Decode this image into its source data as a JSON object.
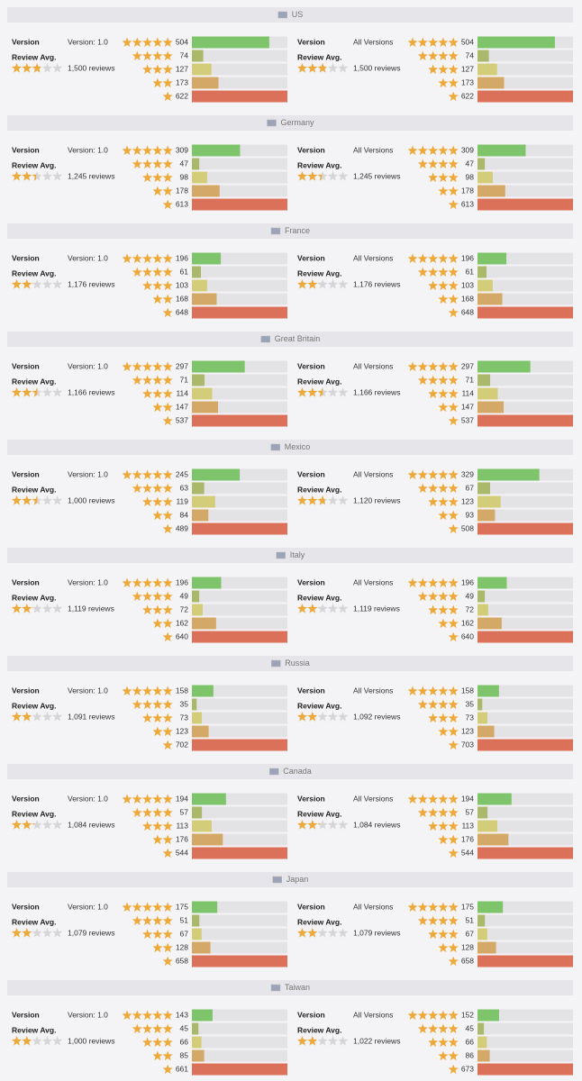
{
  "labels": {
    "version": "Version",
    "review_avg": "Review Avg."
  },
  "bar_colors": [
    "#7dc46a",
    "#a9b86a",
    "#d3cc79",
    "#d4a866",
    "#db7159"
  ],
  "countries": [
    {
      "name": "US",
      "panels": [
        {
          "version": "Version: 1.0",
          "rating": 2.8,
          "reviews": "1,500 reviews",
          "counts": [
            504,
            74,
            127,
            173,
            622
          ]
        },
        {
          "version": "All Versions",
          "rating": 2.8,
          "reviews": "1,500 reviews",
          "counts": [
            504,
            74,
            127,
            173,
            622
          ]
        }
      ]
    },
    {
      "name": "Germany",
      "panels": [
        {
          "version": "Version: 1.0",
          "rating": 2.4,
          "reviews": "1,245 reviews",
          "counts": [
            309,
            47,
            98,
            178,
            613
          ]
        },
        {
          "version": "All Versions",
          "rating": 2.4,
          "reviews": "1,245 reviews",
          "counts": [
            309,
            47,
            98,
            178,
            613
          ]
        }
      ]
    },
    {
      "name": "France",
      "panels": [
        {
          "version": "Version: 1.0",
          "rating": 2.1,
          "reviews": "1,176 reviews",
          "counts": [
            196,
            61,
            103,
            168,
            648
          ]
        },
        {
          "version": "All Versions",
          "rating": 2.1,
          "reviews": "1,176 reviews",
          "counts": [
            196,
            61,
            103,
            168,
            648
          ]
        }
      ]
    },
    {
      "name": "Great Britain",
      "panels": [
        {
          "version": "Version: 1.0",
          "rating": 2.5,
          "reviews": "1,166 reviews",
          "counts": [
            297,
            71,
            114,
            147,
            537
          ]
        },
        {
          "version": "All Versions",
          "rating": 2.5,
          "reviews": "1,166 reviews",
          "counts": [
            297,
            71,
            114,
            147,
            537
          ]
        }
      ]
    },
    {
      "name": "Mexico",
      "panels": [
        {
          "version": "Version: 1.0",
          "rating": 2.5,
          "reviews": "1,000 reviews",
          "counts": [
            245,
            63,
            119,
            84,
            489
          ]
        },
        {
          "version": "All Versions",
          "rating": 2.7,
          "reviews": "1,120 reviews",
          "counts": [
            329,
            67,
            123,
            93,
            508
          ]
        }
      ]
    },
    {
      "name": "Italy",
      "panels": [
        {
          "version": "Version: 1.0",
          "rating": 2.1,
          "reviews": "1,119 reviews",
          "counts": [
            196,
            49,
            72,
            162,
            640
          ]
        },
        {
          "version": "All Versions",
          "rating": 2.1,
          "reviews": "1,119 reviews",
          "counts": [
            196,
            49,
            72,
            162,
            640
          ]
        }
      ]
    },
    {
      "name": "Russia",
      "panels": [
        {
          "version": "Version: 1.0",
          "rating": 1.9,
          "reviews": "1,091 reviews",
          "counts": [
            158,
            35,
            73,
            123,
            702
          ]
        },
        {
          "version": "All Versions",
          "rating": 1.9,
          "reviews": "1,092 reviews",
          "counts": [
            158,
            35,
            73,
            123,
            703
          ]
        }
      ]
    },
    {
      "name": "Canada",
      "panels": [
        {
          "version": "Version: 1.0",
          "rating": 2.2,
          "reviews": "1,084 reviews",
          "counts": [
            194,
            57,
            113,
            176,
            544
          ]
        },
        {
          "version": "All Versions",
          "rating": 2.2,
          "reviews": "1,084 reviews",
          "counts": [
            194,
            57,
            113,
            176,
            544
          ]
        }
      ]
    },
    {
      "name": "Japan",
      "panels": [
        {
          "version": "Version: 1.0",
          "rating": 2.0,
          "reviews": "1,079 reviews",
          "counts": [
            175,
            51,
            67,
            128,
            658
          ]
        },
        {
          "version": "All Versions",
          "rating": 2.0,
          "reviews": "1,079 reviews",
          "counts": [
            175,
            51,
            67,
            128,
            658
          ]
        }
      ]
    },
    {
      "name": "Taiwan",
      "panels": [
        {
          "version": "Version: 1.0",
          "rating": 1.9,
          "reviews": "1,000 reviews",
          "counts": [
            143,
            45,
            66,
            85,
            661
          ]
        },
        {
          "version": "All Versions",
          "rating": 1.9,
          "reviews": "1,022 reviews",
          "counts": [
            152,
            45,
            66,
            86,
            673
          ]
        }
      ]
    }
  ]
}
